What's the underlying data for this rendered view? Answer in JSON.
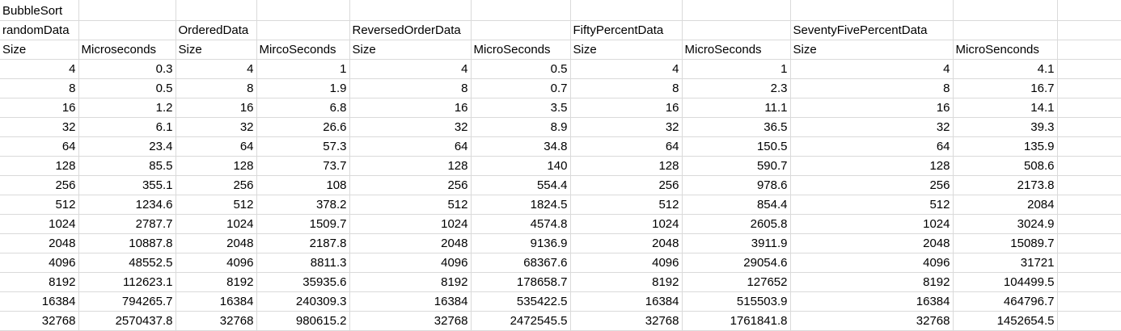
{
  "sheet": {
    "title": "BubbleSort",
    "groups": [
      "randomData",
      "OrderedData",
      "ReversedOrderData",
      "FiftyPercentData",
      "SeventyFivePercentData"
    ],
    "headers": [
      "Size",
      "Microseconds",
      "Size",
      "MircoSeconds",
      "Size",
      "MicroSeconds",
      "Size",
      "MicroSeconds",
      "Size",
      "MicroSenconds"
    ],
    "rows": [
      [
        "4",
        "0.3",
        "4",
        "1",
        "4",
        "0.5",
        "4",
        "1",
        "4",
        "4.1"
      ],
      [
        "8",
        "0.5",
        "8",
        "1.9",
        "8",
        "0.7",
        "8",
        "2.3",
        "8",
        "16.7"
      ],
      [
        "16",
        "1.2",
        "16",
        "6.8",
        "16",
        "3.5",
        "16",
        "11.1",
        "16",
        "14.1"
      ],
      [
        "32",
        "6.1",
        "32",
        "26.6",
        "32",
        "8.9",
        "32",
        "36.5",
        "32",
        "39.3"
      ],
      [
        "64",
        "23.4",
        "64",
        "57.3",
        "64",
        "34.8",
        "64",
        "150.5",
        "64",
        "135.9"
      ],
      [
        "128",
        "85.5",
        "128",
        "73.7",
        "128",
        "140",
        "128",
        "590.7",
        "128",
        "508.6"
      ],
      [
        "256",
        "355.1",
        "256",
        "108",
        "256",
        "554.4",
        "256",
        "978.6",
        "256",
        "2173.8"
      ],
      [
        "512",
        "1234.6",
        "512",
        "378.2",
        "512",
        "1824.5",
        "512",
        "854.4",
        "512",
        "2084"
      ],
      [
        "1024",
        "2787.7",
        "1024",
        "1509.7",
        "1024",
        "4574.8",
        "1024",
        "2605.8",
        "1024",
        "3024.9"
      ],
      [
        "2048",
        "10887.8",
        "2048",
        "2187.8",
        "2048",
        "9136.9",
        "2048",
        "3911.9",
        "2048",
        "15089.7"
      ],
      [
        "4096",
        "48552.5",
        "4096",
        "8811.3",
        "4096",
        "68367.6",
        "4096",
        "29054.6",
        "4096",
        "31721"
      ],
      [
        "8192",
        "112623.1",
        "8192",
        "35935.6",
        "8192",
        "178658.7",
        "8192",
        "127652",
        "8192",
        "104499.5"
      ],
      [
        "16384",
        "794265.7",
        "16384",
        "240309.3",
        "16384",
        "535422.5",
        "16384",
        "515503.9",
        "16384",
        "464796.7"
      ],
      [
        "32768",
        "2570437.8",
        "32768",
        "980615.2",
        "32768",
        "2472545.5",
        "32768",
        "1761841.8",
        "32768",
        "1452654.5"
      ]
    ]
  }
}
